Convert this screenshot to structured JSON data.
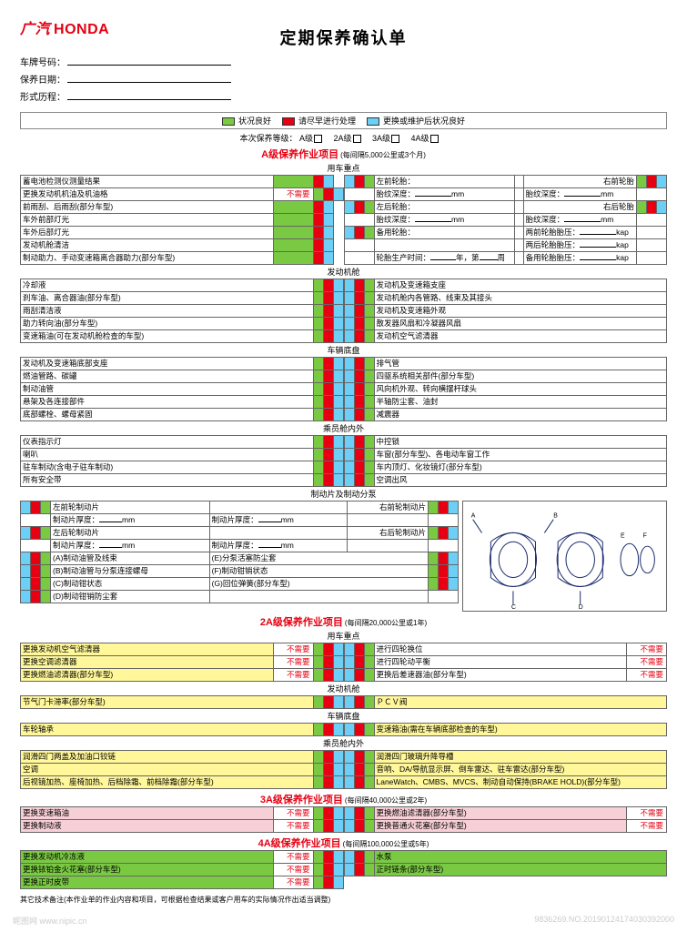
{
  "brand_cn": "广汽",
  "brand_en": "HONDA",
  "title": "定期保养确认单",
  "fields": [
    {
      "label": "车牌号码："
    },
    {
      "label": "保养日期："
    },
    {
      "label": "形式历程："
    }
  ],
  "legend": [
    {
      "color": "green",
      "text": "状况良好"
    },
    {
      "color": "red",
      "text": "请尽早进行处理"
    },
    {
      "color": "cyan",
      "text": "更换或维护后状况良好"
    }
  ],
  "grade_prefix": "本次保养等级：",
  "grades": [
    "A级",
    "2A级",
    "3A级",
    "4A级"
  ],
  "sections": {
    "A": {
      "title": "A级保养作业项目",
      "sub": "(每间隔5,000公里或3个月)",
      "groups": [
        {
          "head": "用车重点",
          "left": [
            {
              "t": "蓄电池检测仪测量结果"
            },
            {
              "t": "更换发动机机油及机油格",
              "note": "不需要"
            },
            {
              "t": "前雨刮、后雨刮(部分车型)"
            },
            {
              "t": "车外前部灯光"
            },
            {
              "t": "车外后部灯光"
            },
            {
              "t": "发动机舱清洁"
            },
            {
              "t": "制动助力、手动变速箱离合器助力(部分车型)"
            }
          ],
          "right_type": "tire"
        },
        {
          "head": "发动机舱",
          "left": [
            {
              "t": "冷却液"
            },
            {
              "t": "刹车油、离合器油(部分车型)"
            },
            {
              "t": "雨刮清洁液"
            },
            {
              "t": "助力转向油(部分车型)"
            },
            {
              "t": "变速箱油(可在发动机舱检查的车型)"
            }
          ],
          "right": [
            {
              "t": "发动机及变速箱支座"
            },
            {
              "t": "发动机舱内各管路、线束及其接头"
            },
            {
              "t": "发动机及变速箱外观"
            },
            {
              "t": "散发器风扇和冷凝器风扇"
            },
            {
              "t": "发动机空气滤清器"
            }
          ]
        },
        {
          "head": "车辆底盘",
          "left": [
            {
              "t": "发动机及变速箱底部支座"
            },
            {
              "t": "燃油管路、碳罐"
            },
            {
              "t": "制动油管"
            },
            {
              "t": "悬架及各连接部件"
            },
            {
              "t": "底部螺栓、螺母紧固"
            }
          ],
          "right": [
            {
              "t": "排气管"
            },
            {
              "t": "四驱系统相关部件(部分车型)"
            },
            {
              "t": "风向机外观、转向横摆杆球头"
            },
            {
              "t": "半轴防尘套、油封"
            },
            {
              "t": "减震器"
            }
          ]
        },
        {
          "head": "乘员舱内外",
          "left": [
            {
              "t": "仪表指示灯"
            },
            {
              "t": "喇叭"
            },
            {
              "t": "驻车制动(含电子驻车制动)"
            },
            {
              "t": "所有安全带"
            }
          ],
          "right": [
            {
              "t": "中控锁"
            },
            {
              "t": "车窗(部分车型)、各电动车窗工作"
            },
            {
              "t": "车内顶灯、化妆镜灯(部分车型)"
            },
            {
              "t": "空调出风"
            }
          ]
        },
        {
          "head": "制动片及制动分泵",
          "type": "brake"
        }
      ],
      "brake": {
        "rows1": [
          "左前轮制动片",
          "左后轮制动片"
        ],
        "rows1_right": [
          "右前轮制动片",
          "右后轮制动片"
        ],
        "thick": "制动片厚度：",
        "unit": "mm",
        "items": [
          "(A)制动油管及线束",
          "(B)制动油管与分泵连接螺母",
          "(C)制动钳状态",
          "(D)制动钳销防尘套",
          "(E)分泵活塞防尘套",
          "(F)制动钳销状态",
          "(G)回位弹簧(部分车型)"
        ]
      },
      "tire": {
        "labels": [
          "左前轮胎：",
          "左后轮胎：",
          "备用轮胎："
        ],
        "labels_r": [
          "右前轮胎",
          "右后轮胎"
        ],
        "depth": "胎纹深度：",
        "unit": "mm",
        "pressure": [
          "两前轮胎胎压：",
          "两后轮胎胎压：",
          "备用轮胎胎压："
        ],
        "punit": "kap",
        "prod": "轮胎生产时间：",
        "year": "年，第",
        "week": "周"
      }
    },
    "A2": {
      "title": "2A级保养作业项目",
      "sub": "(每间隔20,000公里或1年)",
      "groups": [
        {
          "head": "用车重点",
          "left": [
            {
              "t": "更换发动机空气滤清器",
              "note": "不需要",
              "bg": "yellrow"
            },
            {
              "t": "更换空调滤清器",
              "note": "不需要",
              "bg": "yellrow"
            },
            {
              "t": "更换燃油滤清器(部分车型)",
              "note": "不需要",
              "bg": "yellrow"
            }
          ],
          "right": [
            {
              "t": "进行四轮换位",
              "note": "不需要"
            },
            {
              "t": "进行四轮动平衡",
              "note": "不需要"
            },
            {
              "t": "更换后差速器油(部分车型)",
              "note": "不需要"
            }
          ]
        },
        {
          "head": "发动机舱",
          "left": [
            {
              "t": "节气门卡滞率(部分车型)",
              "bg": "yellrow"
            }
          ],
          "right": [
            {
              "t": "ＰＣＶ阀",
              "bg": "yellrow"
            }
          ]
        },
        {
          "head": "车辆底盘",
          "left": [
            {
              "t": "车轮轴承",
              "bg": "yellrow"
            }
          ],
          "right": [
            {
              "t": "变速箱油(需在车辆底部检查的车型)",
              "bg": "yellrow"
            }
          ]
        },
        {
          "head": "乘员舱内外",
          "left": [
            {
              "t": "润滑四门两盖及加油口铰链",
              "bg": "yellrow"
            },
            {
              "t": "空调",
              "bg": "yellrow"
            },
            {
              "t": "后视镜加热、座椅加热、后档除霜、前档除霜(部分车型)",
              "bg": "yellrow"
            }
          ],
          "right": [
            {
              "t": "润滑四门玻璃升降导槽",
              "bg": "yellrow"
            },
            {
              "t": "音响、DA/导航显示屏、倒车雷达、驻车雷达(部分车型)",
              "bg": "yellrow"
            },
            {
              "t": "LaneWatch、CMBS、MVCS、制动自动保持(BRAKE HOLD)(部分车型)",
              "bg": "yellrow"
            }
          ]
        }
      ]
    },
    "A3": {
      "title": "3A级保养作业项目",
      "sub": "(每间隔40,000公里或2年)",
      "groups": [
        {
          "head": "",
          "left": [
            {
              "t": "更换变速箱油",
              "note": "不需要",
              "bg": "pinkrow"
            },
            {
              "t": "更换制动液",
              "note": "不需要",
              "bg": "pinkrow"
            }
          ],
          "right": [
            {
              "t": "更换燃油滤清器(部分车型)",
              "note": "不需要",
              "bg": "pinkrow"
            },
            {
              "t": "更换普通火花塞(部分车型)",
              "note": "不需要",
              "bg": "pinkrow"
            }
          ]
        }
      ]
    },
    "A4": {
      "title": "4A级保养作业项目",
      "sub": "(每间隔100,000公里或5年)",
      "groups": [
        {
          "head": "",
          "left": [
            {
              "t": "更换发动机冷冻液",
              "note": "不需要",
              "bg": "greenrow"
            },
            {
              "t": "更换铱铂金火花塞(部分车型)",
              "note": "不需要",
              "bg": "greenrow"
            },
            {
              "t": "更换正时皮带",
              "note": "不需要",
              "bg": "greenrow"
            }
          ],
          "right": [
            {
              "t": "水泵",
              "bg": "greenrow"
            },
            {
              "t": "正时链条(部分车型)",
              "bg": "greenrow"
            }
          ]
        }
      ]
    }
  },
  "footnote": "其它技术备注(本作业单的作业内容和项目，可根据检查结果或客户用车的实际情况作出适当调整)",
  "watermark_left": "昵图网 www.nipic.cn",
  "watermark_right": "9836269.NO.20190124174030392000"
}
